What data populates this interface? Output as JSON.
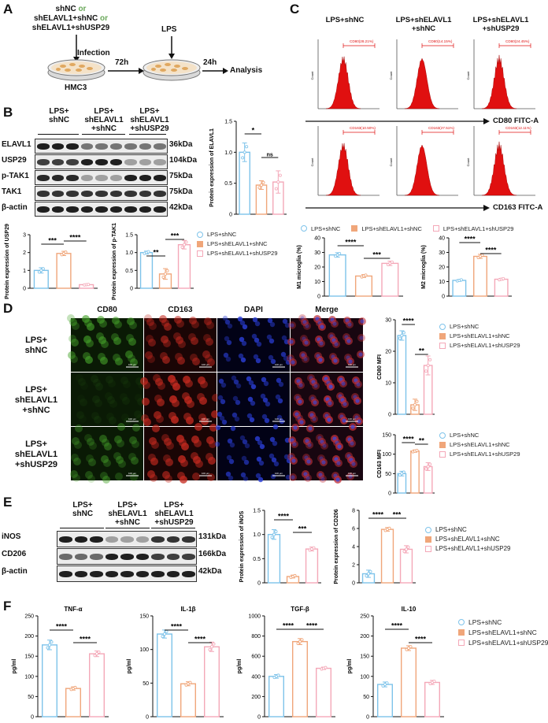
{
  "panels": {
    "A": "A",
    "B": "B",
    "C": "C",
    "D": "D",
    "E": "E",
    "F": "F"
  },
  "colors": {
    "blue": "#7ec3ea",
    "orange": "#f0a67a",
    "pink": "#f4a8b8",
    "red": "#e01010"
  },
  "panelA": {
    "line1_a": "shNC",
    "line1_or": " or",
    "line2_a": "shELAVL1+shNC",
    "line2_or": " or",
    "line3": "shELAVL1+shUSP29",
    "infection": "Infection",
    "lps": "LPS",
    "t72": "72h",
    "t24": "24h",
    "analysis": "Analysis",
    "cell": "HMC3"
  },
  "groups": [
    "LPS+\nshNC",
    "LPS+\nshELAVL1\n+shNC",
    "LPS+\nshELAVL1\n+shUSP29"
  ],
  "legend": [
    "LPS+shNC",
    "LPS+shELAVL1+shNC",
    "LPS+shELAVL1+shUSP29"
  ],
  "panelB": {
    "group_labels": [
      [
        "LPS+",
        "shNC"
      ],
      [
        "LPS+",
        "shELAVL1",
        "+shNC"
      ],
      [
        "LPS+",
        "shELAVL1",
        "+shUSP29"
      ]
    ],
    "rows": [
      {
        "name": "ELAVL1",
        "kda": "36kDa"
      },
      {
        "name": "USP29",
        "kda": "104kDa"
      },
      {
        "name": "p-TAK1",
        "kda": "75kDa"
      },
      {
        "name": "TAK1",
        "kda": "75kDa"
      },
      {
        "name": "β-actin",
        "kda": "42kDa"
      }
    ]
  },
  "panelC": {
    "titles": [
      [
        "LPS+shNC"
      ],
      [
        "LPS+shELAVL1",
        "+shNC"
      ],
      [
        "LPS+shELAVL1",
        "+shUSP29"
      ]
    ],
    "gates_cd80": [
      "CD80(28.21%)",
      "CD80(14.15%)",
      "CD80(24.45%)"
    ],
    "gates_cd163": [
      "CD163(10.50%)",
      "CD163(27.51%)",
      "CD163(12.11%)"
    ],
    "axis_cd80": "CD80 FITC-A",
    "axis_cd163": "CD163 FITC-A",
    "count": "Count"
  },
  "panelD": {
    "cols": [
      "CD80",
      "CD163",
      "DAPI",
      "Merge"
    ],
    "rows": [
      [
        "LPS+",
        "shNC"
      ],
      [
        "LPS+",
        "shELAVL1",
        "+shNC"
      ],
      [
        "LPS+",
        "shELAVL1",
        "+shUSP29"
      ]
    ],
    "scale": "100 μm"
  },
  "panelE": {
    "group_labels": [
      [
        "LPS+",
        "shNC"
      ],
      [
        "LPS+",
        "shELAVL1",
        "+shNC"
      ],
      [
        "LPS+",
        "shELAVL1",
        "+shUSP29"
      ]
    ],
    "rows": [
      {
        "name": "iNOS",
        "kda": "131kDa"
      },
      {
        "name": "CD206",
        "kda": "166kDa"
      },
      {
        "name": "β-actin",
        "kda": "42kDa"
      }
    ]
  },
  "chart_data": [
    {
      "id": "elavl1",
      "type": "bar",
      "ylabel": "Protein expression of ELAVL1",
      "ylim": [
        0,
        1.5
      ],
      "yticks": [
        0,
        0.5,
        1.0,
        1.5
      ],
      "values": [
        1.0,
        0.47,
        0.52
      ],
      "errors": [
        0.15,
        0.07,
        0.18
      ],
      "sig": [
        {
          "a": 0,
          "b": 1,
          "label": "*"
        },
        {
          "a": 1,
          "b": 2,
          "label": "ns"
        }
      ]
    },
    {
      "id": "usp29",
      "type": "bar",
      "ylabel": "Protein expression of USP29",
      "ylim": [
        0,
        3
      ],
      "yticks": [
        0,
        1,
        2,
        3
      ],
      "values": [
        1.0,
        1.95,
        0.2
      ],
      "errors": [
        0.15,
        0.12,
        0.02
      ],
      "sig": [
        {
          "a": 0,
          "b": 1,
          "label": "***"
        },
        {
          "a": 1,
          "b": 2,
          "label": "****"
        }
      ]
    },
    {
      "id": "ptak1",
      "type": "bar",
      "ylabel": "Protein expression of p-TAK1",
      "ylim": [
        0,
        1.5
      ],
      "yticks": [
        0,
        0.5,
        1.0,
        1.5
      ],
      "values": [
        1.0,
        0.4,
        1.22
      ],
      "errors": [
        0.04,
        0.15,
        0.12
      ],
      "sig": [
        {
          "a": 0,
          "b": 1,
          "label": "**"
        },
        {
          "a": 1,
          "b": 2,
          "label": "***"
        }
      ]
    },
    {
      "id": "m1",
      "type": "bar",
      "ylabel": "M1 microglia (%)",
      "ylim": [
        0,
        40
      ],
      "yticks": [
        0,
        10,
        20,
        30,
        40
      ],
      "values": [
        28.3,
        13.8,
        22.5
      ],
      "errors": [
        1.5,
        1.0,
        1.5
      ],
      "sig": [
        {
          "a": 0,
          "b": 1,
          "label": "****"
        },
        {
          "a": 1,
          "b": 2,
          "label": "***"
        }
      ]
    },
    {
      "id": "m2",
      "type": "bar",
      "ylabel": "M2 microglia (%)",
      "ylim": [
        0,
        40
      ],
      "yticks": [
        0,
        10,
        20,
        30,
        40
      ],
      "values": [
        10.8,
        27.3,
        11.6
      ],
      "errors": [
        0.6,
        1.4,
        0.6
      ],
      "sig": [
        {
          "a": 0,
          "b": 1,
          "label": "****"
        },
        {
          "a": 1,
          "b": 2,
          "label": "****"
        }
      ]
    },
    {
      "id": "cd80mfi",
      "type": "bar",
      "ylabel": "CD80 MFI",
      "ylim": [
        0,
        30
      ],
      "yticks": [
        0,
        10,
        20,
        30
      ],
      "values": [
        25.0,
        3.0,
        15.5
      ],
      "errors": [
        1.5,
        1.8,
        3.0
      ],
      "sig": [
        {
          "a": 0,
          "b": 1,
          "label": "****"
        },
        {
          "a": 1,
          "b": 2,
          "label": "**"
        }
      ]
    },
    {
      "id": "cd163mfi",
      "type": "bar",
      "ylabel": "CD163 MFI",
      "ylim": [
        0,
        150
      ],
      "yticks": [
        0,
        50,
        100,
        150
      ],
      "values": [
        50,
        108,
        68
      ],
      "errors": [
        6,
        3,
        10
      ],
      "sig": [
        {
          "a": 0,
          "b": 1,
          "label": "****"
        },
        {
          "a": 1,
          "b": 2,
          "label": "**"
        }
      ]
    },
    {
      "id": "inos",
      "type": "bar",
      "ylabel": "Protein expression of iNOS",
      "ylim": [
        0,
        1.5
      ],
      "yticks": [
        0,
        0.5,
        1.0,
        1.5
      ],
      "values": [
        1.0,
        0.13,
        0.7
      ],
      "errors": [
        0.1,
        0.03,
        0.04
      ],
      "sig": [
        {
          "a": 0,
          "b": 1,
          "label": "****"
        },
        {
          "a": 1,
          "b": 2,
          "label": "***"
        }
      ]
    },
    {
      "id": "cd206",
      "type": "bar",
      "ylabel": "Protein expression of CD206",
      "ylim": [
        0,
        8
      ],
      "yticks": [
        0,
        2,
        4,
        6,
        8
      ],
      "values": [
        1.0,
        5.9,
        3.7
      ],
      "errors": [
        0.4,
        0.2,
        0.4
      ],
      "sig": [
        {
          "a": 0,
          "b": 1,
          "label": "****"
        },
        {
          "a": 1,
          "b": 2,
          "label": "***"
        }
      ]
    },
    {
      "id": "tnf",
      "type": "bar",
      "title": "TNF-α",
      "ylabel": "pg/ml",
      "ylim": [
        0,
        250
      ],
      "yticks": [
        0,
        50,
        100,
        150,
        200,
        250
      ],
      "values": [
        178,
        70,
        156
      ],
      "errors": [
        12,
        4,
        7
      ],
      "sig": [
        {
          "a": 0,
          "b": 1,
          "label": "****"
        },
        {
          "a": 1,
          "b": 2,
          "label": "****"
        }
      ]
    },
    {
      "id": "il1b",
      "type": "bar",
      "title": "IL-1β",
      "ylabel": "pg/ml",
      "ylim": [
        0,
        150
      ],
      "yticks": [
        0,
        50,
        100,
        150
      ],
      "values": [
        123,
        49,
        104
      ],
      "errors": [
        6,
        3,
        7
      ],
      "sig": [
        {
          "a": 0,
          "b": 1,
          "label": "****"
        },
        {
          "a": 1,
          "b": 2,
          "label": "****"
        }
      ]
    },
    {
      "id": "tgfb",
      "type": "bar",
      "title": "TGF-β",
      "ylabel": "pg/ml",
      "ylim": [
        0,
        1000
      ],
      "yticks": [
        0,
        200,
        400,
        600,
        800,
        1000
      ],
      "values": [
        400,
        745,
        480
      ],
      "errors": [
        18,
        30,
        12
      ],
      "sig": [
        {
          "a": 0,
          "b": 1,
          "label": "****"
        },
        {
          "a": 1,
          "b": 2,
          "label": "****"
        }
      ]
    },
    {
      "id": "il10",
      "type": "bar",
      "title": "IL-10",
      "ylabel": "pg/ml",
      "ylim": [
        0,
        250
      ],
      "yticks": [
        0,
        50,
        100,
        150,
        200,
        250
      ],
      "values": [
        80,
        170,
        85
      ],
      "errors": [
        6,
        6,
        5
      ],
      "sig": [
        {
          "a": 0,
          "b": 1,
          "label": "****"
        },
        {
          "a": 1,
          "b": 2,
          "label": "****"
        }
      ]
    }
  ]
}
